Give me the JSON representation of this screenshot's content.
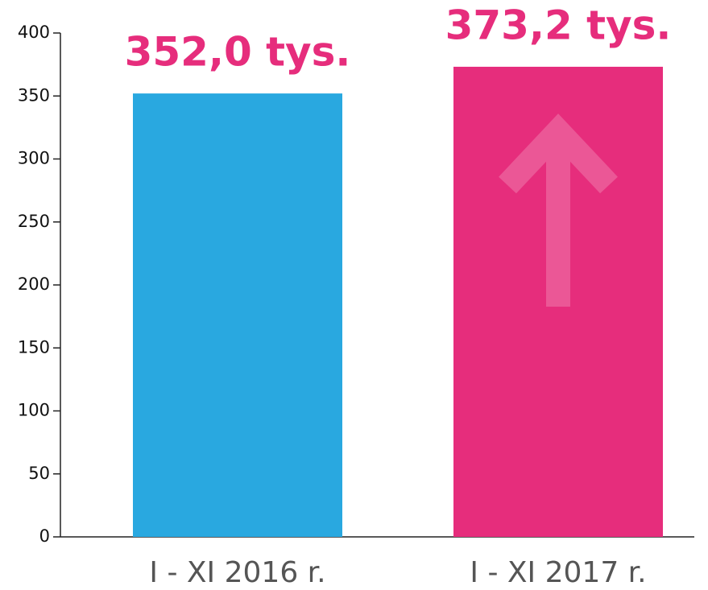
{
  "chart_data": {
    "type": "bar",
    "categories": [
      "I - XI 2016 r.",
      "I - XI 2017 r."
    ],
    "values": [
      352.0,
      373.2
    ],
    "value_labels": [
      "352,0 tys.",
      "373,2 tys."
    ],
    "colors": [
      "#29a8e0",
      "#e62d7c"
    ],
    "ylim": [
      0,
      400
    ],
    "yticks": [
      0,
      50,
      100,
      150,
      200,
      250,
      300,
      350,
      400
    ],
    "grid": false
  }
}
